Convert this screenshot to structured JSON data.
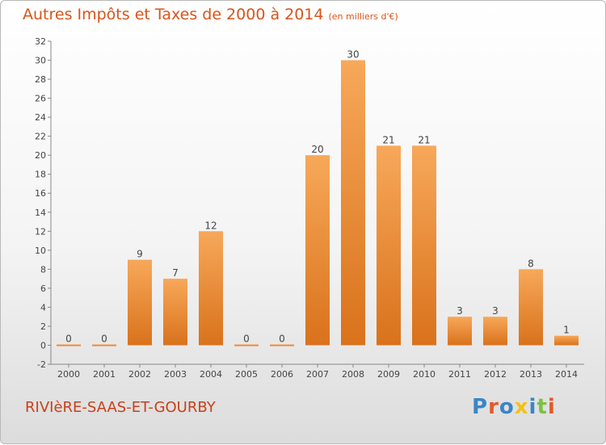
{
  "chart_title": "Autres Impôts et Taxes de 2000 à 2014",
  "chart_subtitle": "(en milliers d'€)",
  "commune_name": "RIVIèRE-SAAS-ET-GOURBY",
  "logo_text": "Proxiti",
  "colors": {
    "title": "#d8541a",
    "bar_light": "#f7a85a",
    "bar_dark": "#d9721b",
    "logo": [
      "#3a86c8",
      "#e35a2a",
      "#3a86c8",
      "#f2c21a",
      "#3a86c8",
      "#7cc242",
      "#e35a2a"
    ]
  },
  "chart_data": {
    "type": "bar",
    "categories": [
      "2000",
      "2001",
      "2002",
      "2003",
      "2004",
      "2005",
      "2006",
      "2007",
      "2008",
      "2009",
      "2010",
      "2011",
      "2012",
      "2013",
      "2014"
    ],
    "values": [
      0,
      0,
      9,
      7,
      12,
      0,
      0,
      20,
      30,
      21,
      21,
      3,
      3,
      8,
      1
    ],
    "ylim": [
      -2,
      32
    ],
    "yticks": [
      -2,
      0,
      2,
      4,
      6,
      8,
      10,
      12,
      14,
      16,
      18,
      20,
      22,
      24,
      26,
      28,
      30,
      32
    ],
    "grid": false,
    "data_labels": true
  }
}
